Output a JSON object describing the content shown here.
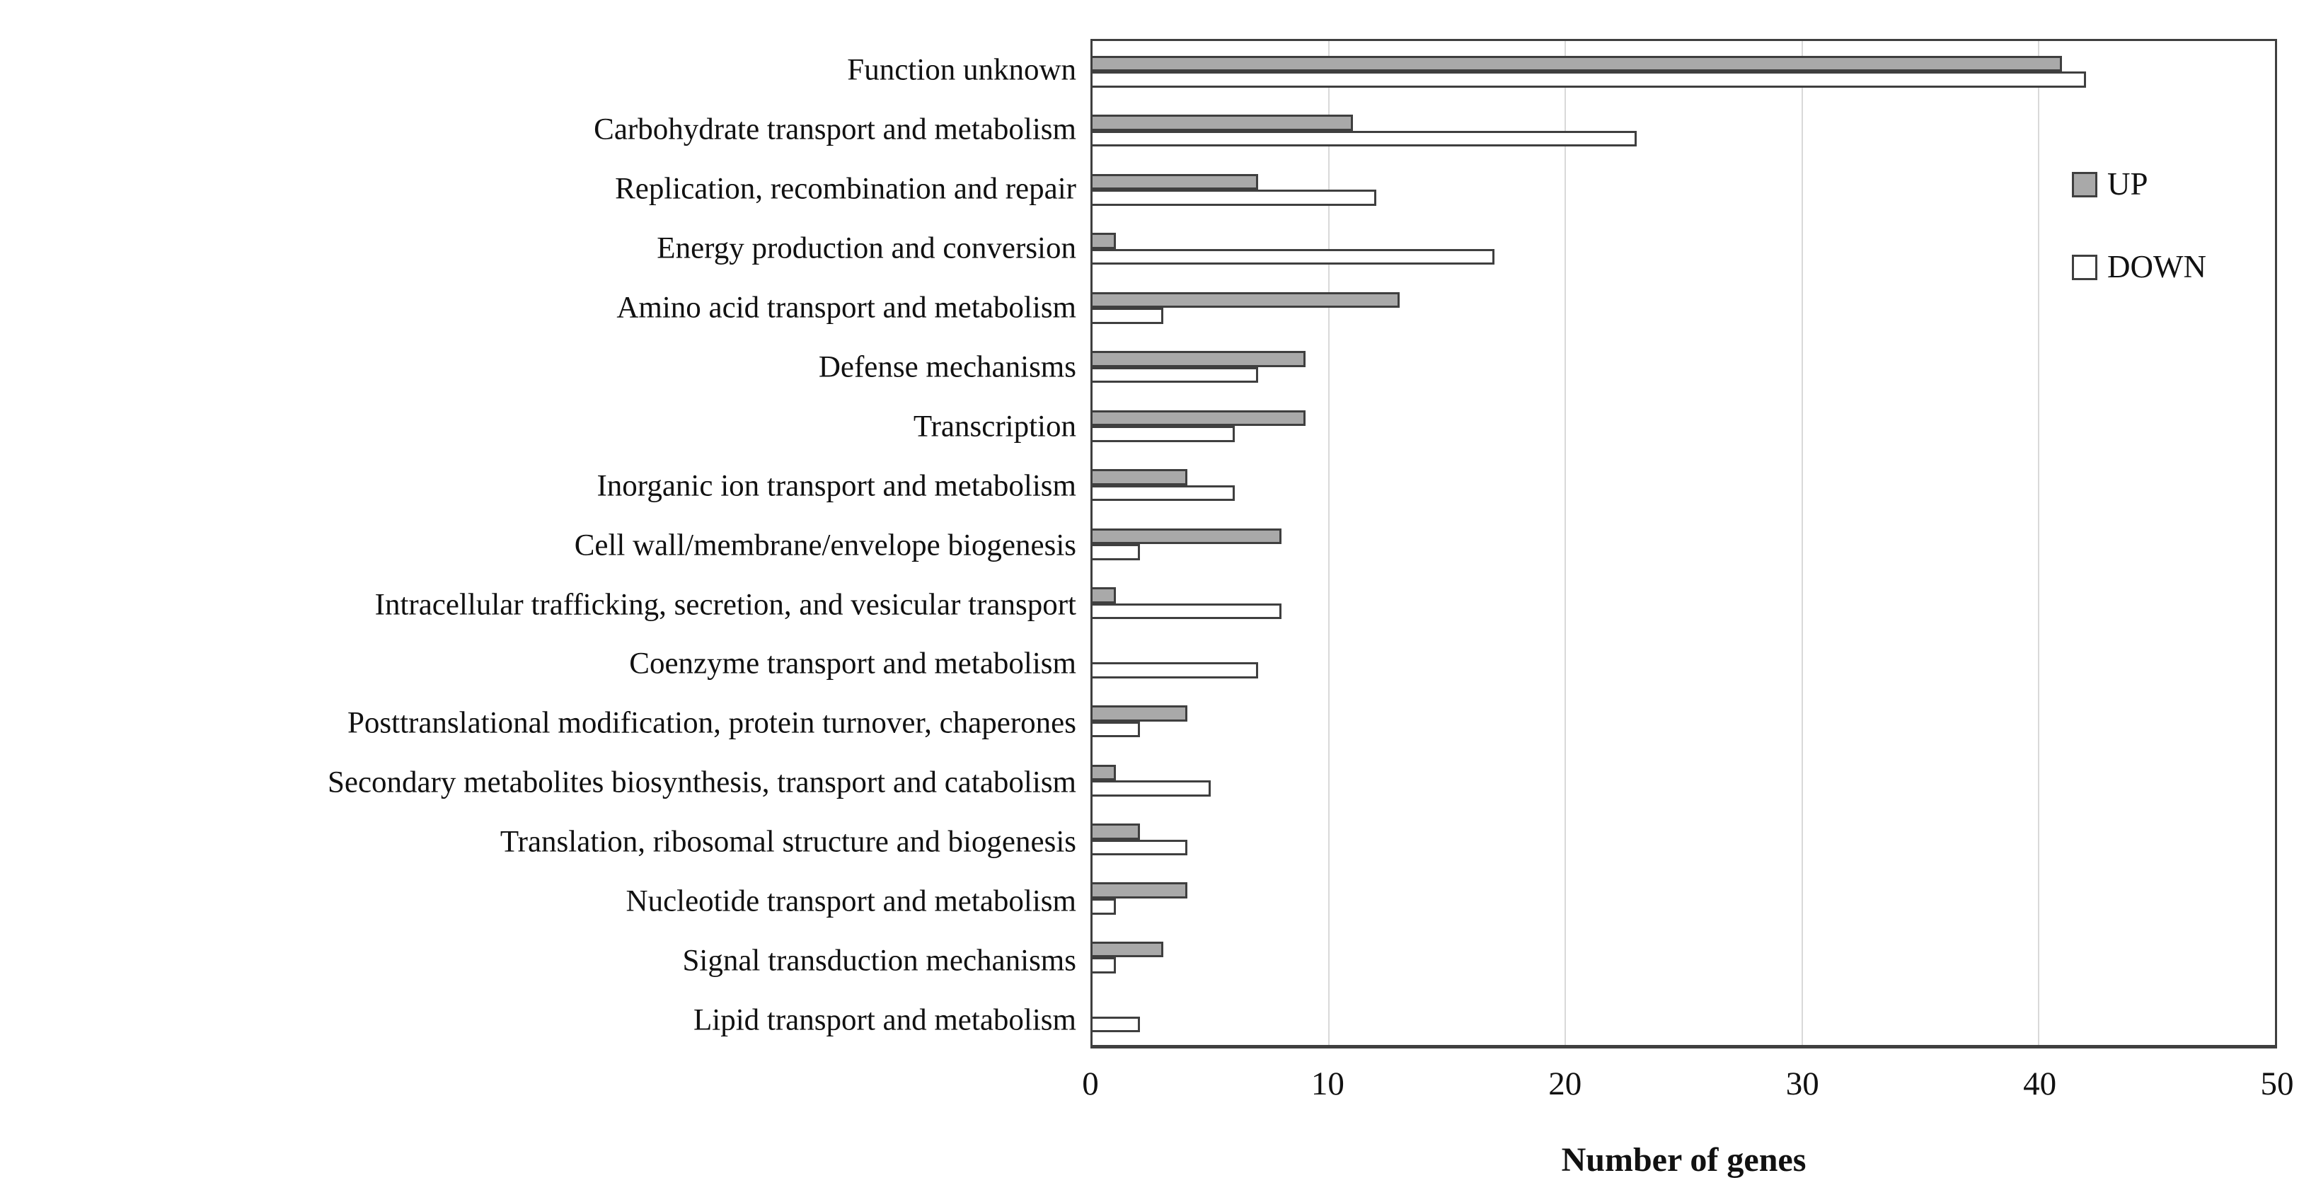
{
  "chart_data": {
    "type": "bar",
    "orientation": "horizontal",
    "title": "",
    "xlabel": "Number of genes",
    "ylabel": "",
    "xlim": [
      0,
      50
    ],
    "xticks": [
      0,
      10,
      20,
      30,
      40,
      50
    ],
    "grid": "vertical",
    "legend_position": "right",
    "categories": [
      "Function unknown",
      "Carbohydrate transport and metabolism",
      "Replication, recombination and repair",
      "Energy production and conversion",
      "Amino acid transport and metabolism",
      "Defense mechanisms",
      "Transcription",
      "Inorganic ion transport and metabolism",
      "Cell wall/membrane/envelope biogenesis",
      "Intracellular trafficking, secretion, and vesicular transport",
      "Coenzyme transport and metabolism",
      "Posttranslational modification, protein turnover, chaperones",
      "Secondary metabolites biosynthesis, transport and catabolism",
      "Translation, ribosomal structure and biogenesis",
      "Nucleotide transport and metabolism",
      "Signal transduction mechanisms",
      "Lipid transport and metabolism"
    ],
    "series": [
      {
        "name": "UP",
        "color": "#a9a9a9",
        "values": [
          41,
          11,
          7,
          1,
          13,
          9,
          9,
          4,
          8,
          1,
          0,
          4,
          1,
          2,
          4,
          3,
          0
        ]
      },
      {
        "name": "DOWN",
        "color": "#ffffff",
        "values": [
          42,
          23,
          12,
          17,
          3,
          7,
          6,
          6,
          2,
          8,
          7,
          2,
          5,
          4,
          1,
          1,
          2
        ]
      }
    ],
    "colors": {
      "bar_border": "#3f3f3f",
      "axis_border": "#3f3f3f",
      "gridline": "#d9d9d9",
      "text": "#111111",
      "background": "#ffffff"
    }
  }
}
